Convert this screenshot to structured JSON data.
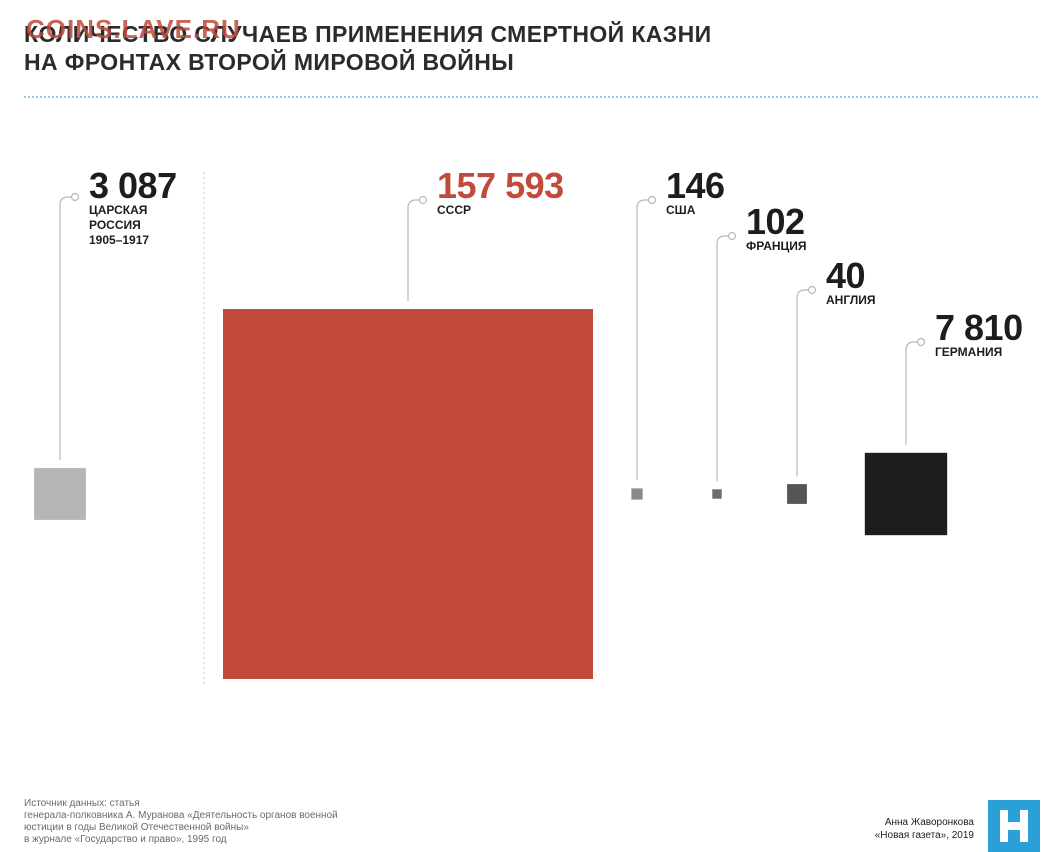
{
  "title": {
    "line1": "КОЛИЧЕСТВО СЛУЧАЕВ ПРИМЕНЕНИЯ СМЕРТНОЙ КАЗНИ",
    "line2": "НА ФРОНТАХ ВТОРОЙ МИРОВОЙ ВОЙНЫ"
  },
  "watermark": "COINS.LAVE.RU",
  "chart_data": {
    "type": "bar",
    "encoding": "square area proportional to value",
    "categories": [
      {
        "label": "ЦАРСКАЯ РОССИЯ 1905–1917",
        "value": 3087,
        "display": "3 087",
        "label_lines": [
          "ЦАРСКАЯ",
          "РОССИЯ",
          "1905–1917"
        ],
        "color": "#b5b5b5",
        "value_color": "#1d1d1f"
      },
      {
        "label": "СССР",
        "value": 157593,
        "display": "157 593",
        "label_lines": [
          "СССР"
        ],
        "color": "#c24a3a",
        "value_color": "#c24a3a"
      },
      {
        "label": "США",
        "value": 146,
        "display": "146",
        "label_lines": [
          "США"
        ],
        "color": "#8a8a8a",
        "value_color": "#1d1d1f"
      },
      {
        "label": "ФРАНЦИЯ",
        "value": 102,
        "display": "102",
        "label_lines": [
          "ФРАНЦИЯ"
        ],
        "color": "#6e6e6e",
        "value_color": "#1d1d1f"
      },
      {
        "label": "АНГЛИЯ",
        "value": 40,
        "display": "40",
        "label_lines": [
          "АНГЛИЯ"
        ],
        "color": "#555555",
        "value_color": "#1d1d1f"
      },
      {
        "label": "ГЕРМАНИЯ",
        "value": 7810,
        "display": "7 810",
        "label_lines": [
          "ГЕРМАНИЯ"
        ],
        "color": "#1d1c1e",
        "value_color": "#1d1d1f"
      }
    ]
  },
  "source": {
    "line1": "Источник данных: статья",
    "line2": "генерала-полковника А. Муранова «Деятельность органов военной",
    "line3": "юстиции в годы Великой Отечественной войны»",
    "line4": "в журнале «Государство и право», 1995 год"
  },
  "author": {
    "name": "Анна Жаворонкова",
    "publication": "«Новая газета», 2019"
  },
  "colors": {
    "accent_red": "#c24a3a",
    "separator": "#8fd0e6",
    "logo_blue": "#2a9fd8"
  },
  "logo": {
    "icon": "novaya-gazeta-logo-icon"
  }
}
